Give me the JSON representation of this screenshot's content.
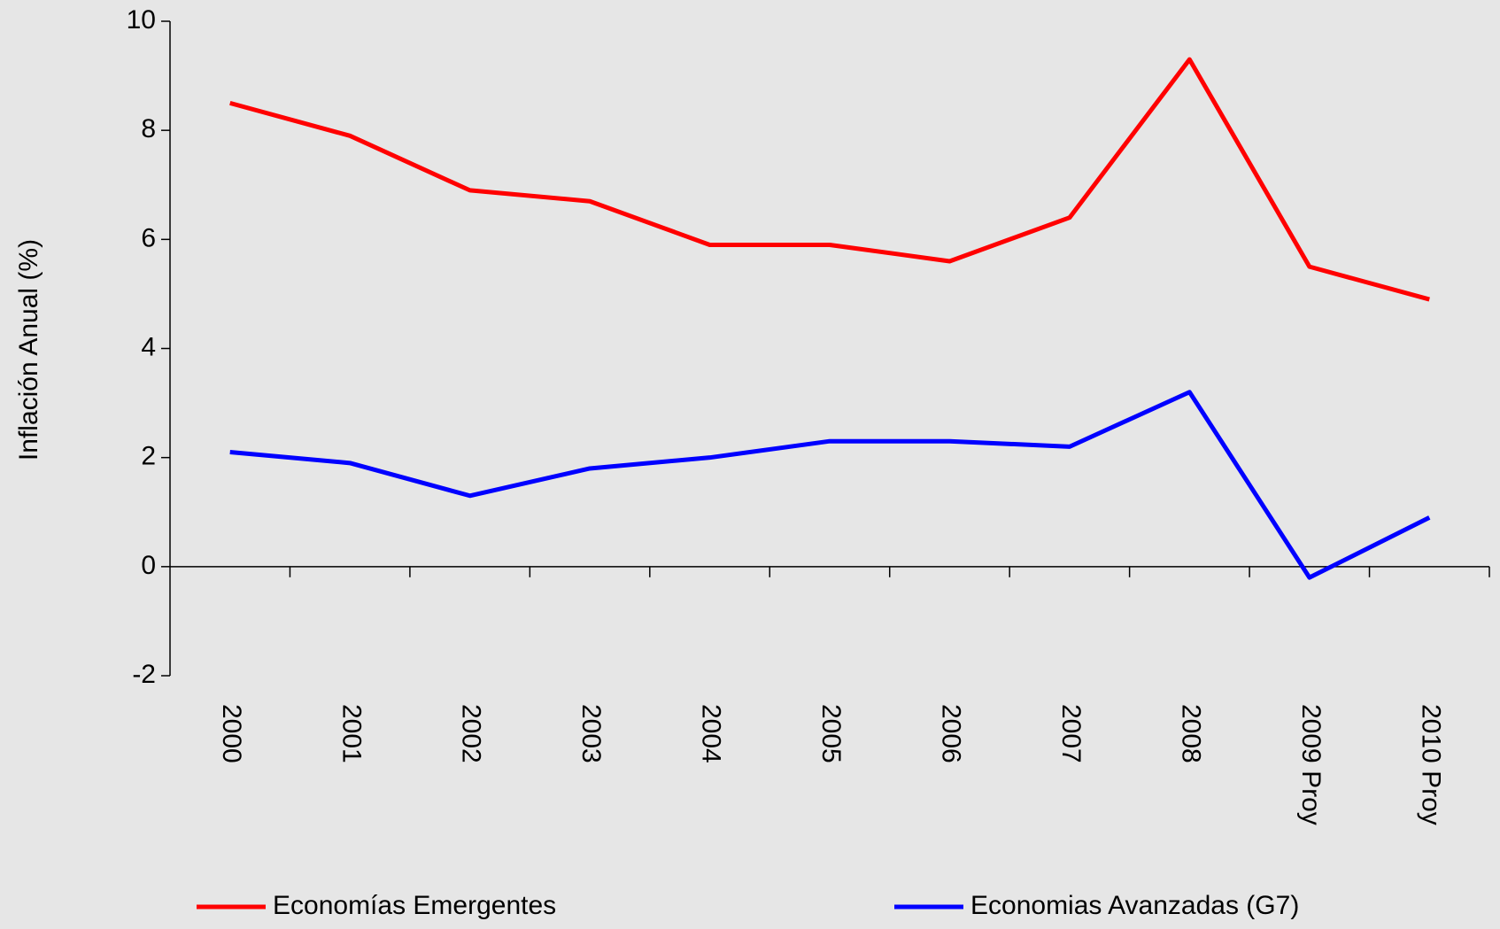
{
  "chart_data": {
    "type": "line",
    "y_label": "Inflación Anual (%)",
    "categories": [
      "2000",
      "2001",
      "2002",
      "2003",
      "2004",
      "2005",
      "2006",
      "2007",
      "2008",
      "2009 Proy",
      "2010 Proy"
    ],
    "series": [
      {
        "name": "Economías Emergentes",
        "color": "#ff0000",
        "values": [
          8.5,
          7.9,
          6.9,
          6.7,
          5.9,
          5.9,
          5.6,
          6.4,
          9.3,
          5.5,
          4.9
        ]
      },
      {
        "name": "Economias Avanzadas (G7)",
        "color": "#0000ff",
        "values": [
          2.1,
          1.9,
          1.3,
          1.8,
          2.0,
          2.3,
          2.3,
          2.2,
          3.2,
          -0.2,
          0.9
        ]
      }
    ],
    "ylim": [
      -2,
      10
    ],
    "yticks": [
      -2,
      0,
      2,
      4,
      6,
      8,
      10
    ],
    "grid": false,
    "legend": "bottom"
  }
}
